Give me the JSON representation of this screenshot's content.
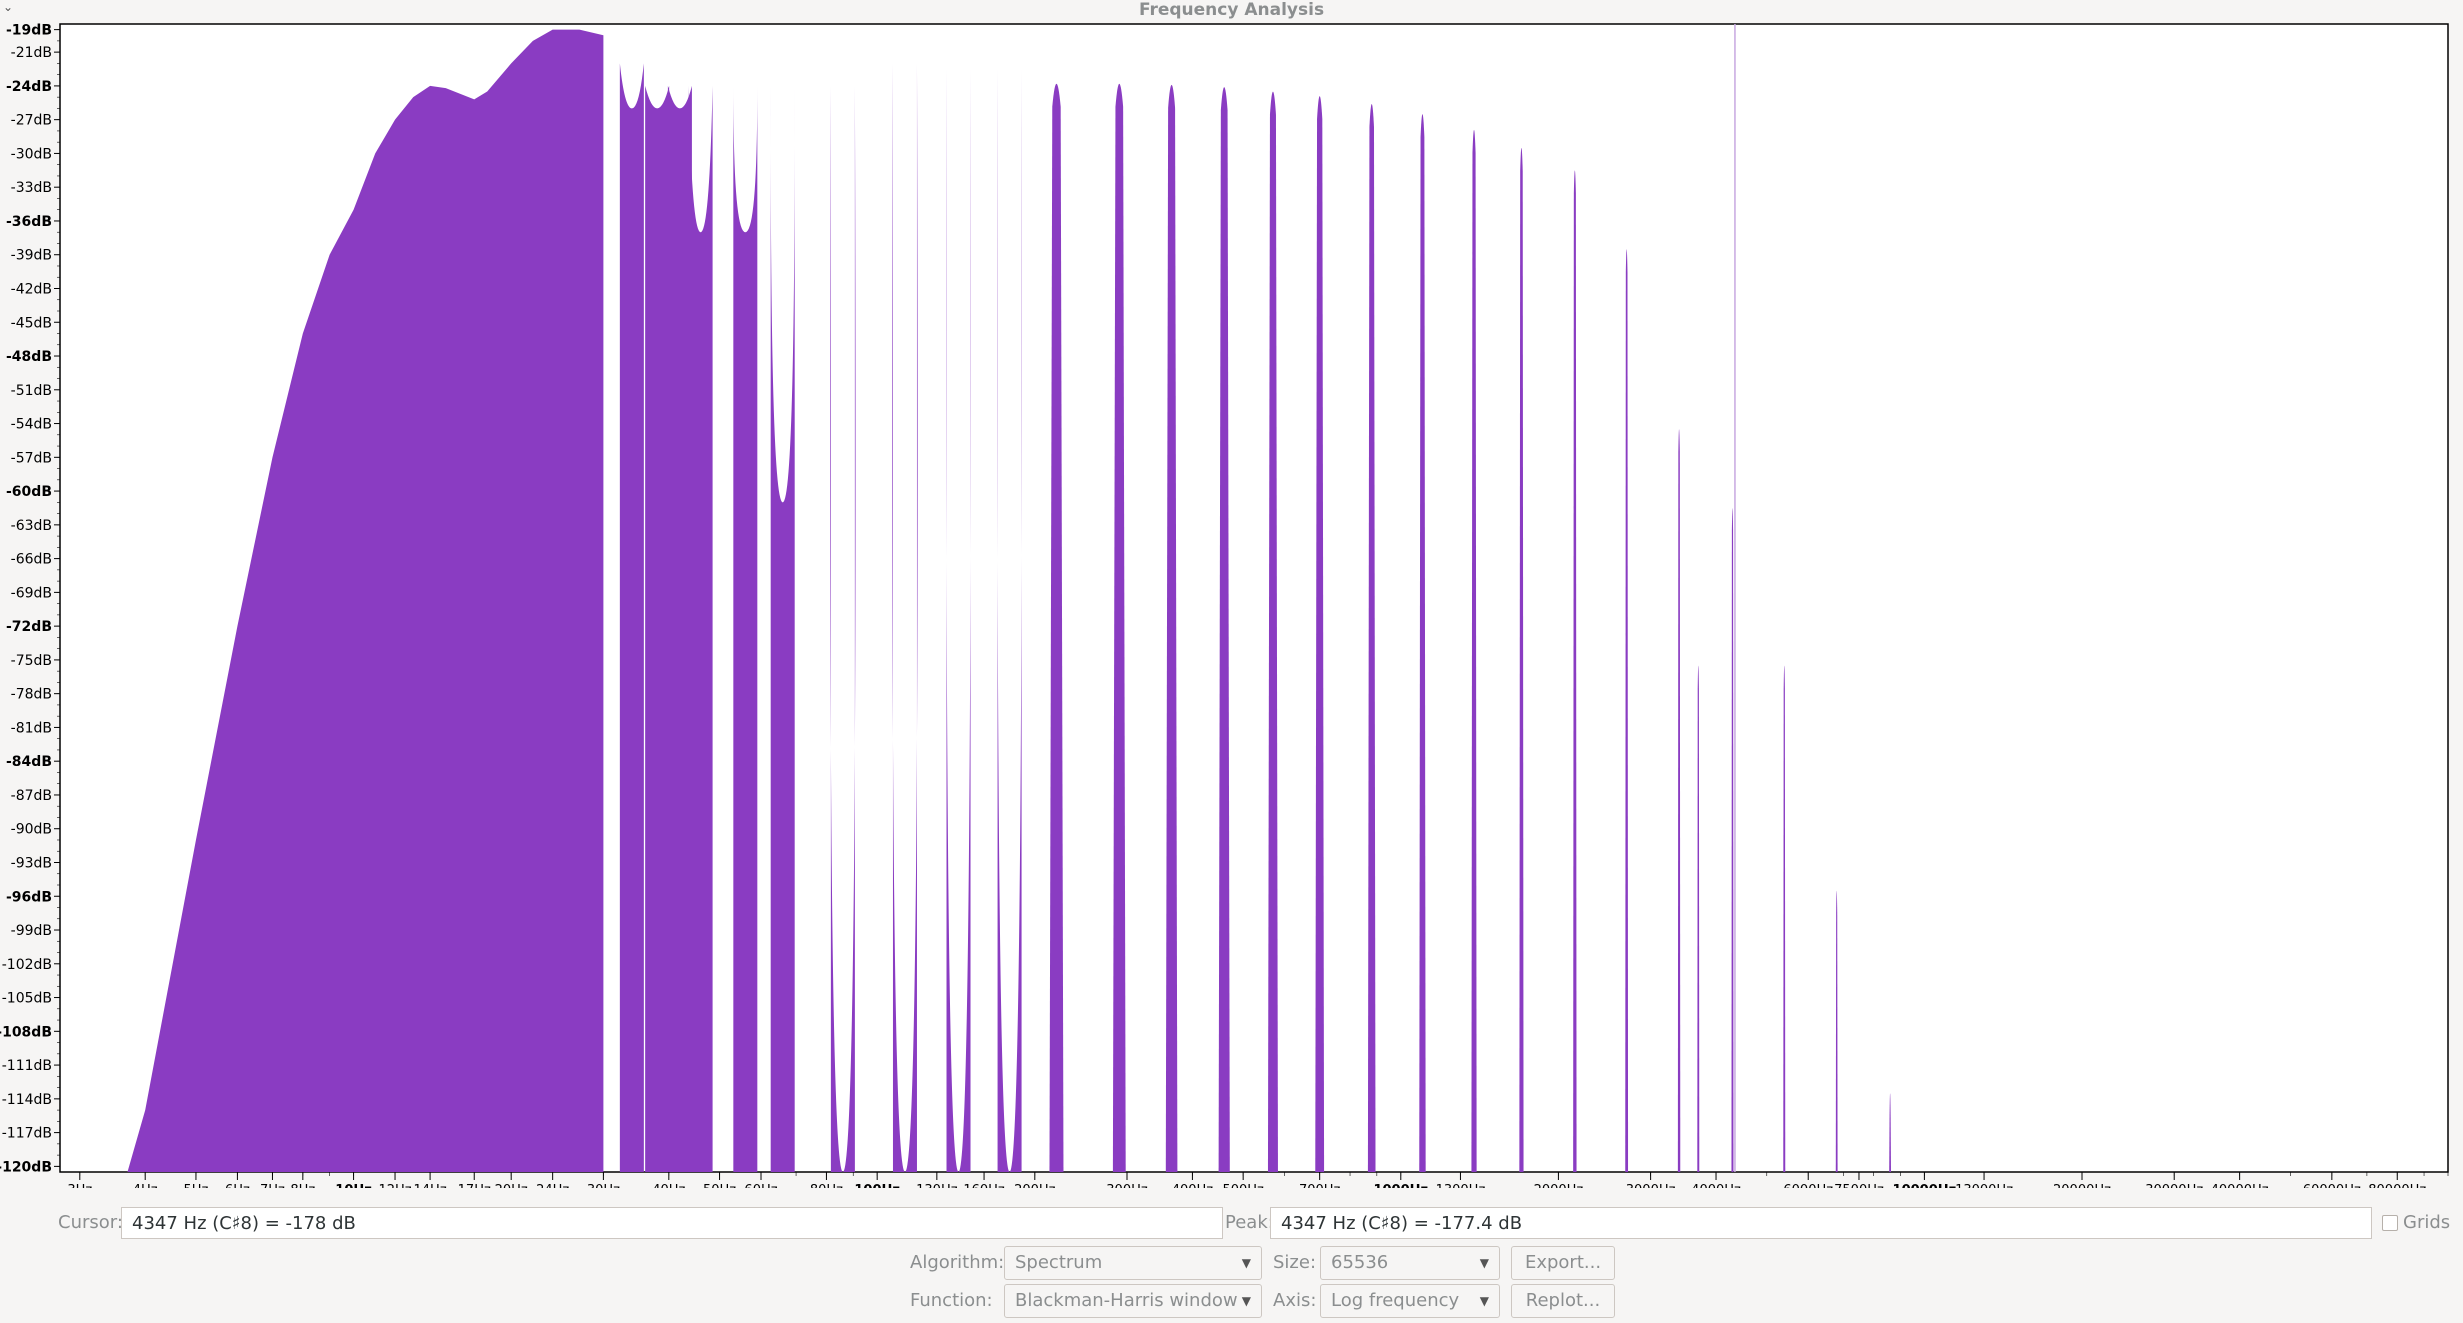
{
  "window": {
    "title": "Frequency Analysis",
    "menu_glyph": "⌄"
  },
  "chart_data": {
    "type": "area",
    "title": "",
    "xlabel": "",
    "ylabel": "",
    "x_scale": "log",
    "xlim": [
      2.75,
      100000
    ],
    "ylim": [
      -120.5,
      -18.5
    ],
    "y_ticks": [
      -19,
      -21,
      -24,
      -27,
      -30,
      -33,
      -36,
      -39,
      -42,
      -45,
      -48,
      -51,
      -54,
      -57,
      -60,
      -63,
      -66,
      -69,
      -72,
      -75,
      -78,
      -81,
      -84,
      -87,
      -90,
      -93,
      -96,
      -99,
      -102,
      -105,
      -108,
      -111,
      -114,
      -117,
      -120
    ],
    "y_bold_ticks": [
      -19,
      -24,
      -36,
      -48,
      -60,
      -72,
      -84,
      -96,
      -108,
      -120
    ],
    "x_ticks": [
      3,
      4,
      5,
      6,
      7,
      8,
      10,
      12,
      14,
      17,
      20,
      24,
      30,
      40,
      50,
      60,
      80,
      100,
      130,
      160,
      200,
      300,
      400,
      500,
      700,
      1000,
      1300,
      2000,
      3000,
      4000,
      6000,
      7500,
      10000,
      13000,
      20000,
      30000,
      40000,
      60000,
      80000
    ],
    "x_bold_ticks": [
      10,
      100,
      1000,
      10000
    ],
    "x_tick_unit": "Hz",
    "y_tick_unit": "dB",
    "fill_color": "#8a3cc2",
    "cursor_line_hz": 4347,
    "grid": false,
    "envelope": [
      [
        3.7,
        -121
      ],
      [
        4,
        -115
      ],
      [
        5,
        -91
      ],
      [
        6,
        -72
      ],
      [
        7,
        -57
      ],
      [
        8,
        -46
      ],
      [
        9,
        -39
      ],
      [
        10,
        -35
      ],
      [
        11,
        -30
      ],
      [
        12,
        -27
      ],
      [
        13,
        -25
      ],
      [
        14,
        -24
      ],
      [
        15,
        -24.2
      ],
      [
        17,
        -25.2
      ],
      [
        18,
        -24.5
      ],
      [
        20,
        -22
      ],
      [
        22,
        -20
      ],
      [
        24,
        -19
      ],
      [
        27,
        -19
      ],
      [
        30,
        -19.5
      ]
    ],
    "lobes": [
      [
        34,
        -26,
        2.8,
        -22
      ],
      [
        38,
        -26,
        2.4,
        -24
      ],
      [
        42,
        -26,
        2.4,
        -24
      ],
      [
        46,
        -37,
        3.4,
        -24
      ],
      [
        56,
        -37,
        4.6,
        -24
      ],
      [
        66,
        -61,
        4.8,
        -24
      ],
      [
        86,
        -121,
        6.0,
        -24
      ],
      [
        113,
        -121,
        6.0,
        -22
      ],
      [
        143,
        -121,
        5.4,
        -22.5
      ],
      [
        179,
        -121,
        5.4,
        -22.5
      ]
    ],
    "harmonics": [
      [
        220,
        -22.3,
        7.0
      ],
      [
        290,
        -22.3,
        6.4
      ],
      [
        365,
        -22.4,
        5.8
      ],
      [
        460,
        -22.6,
        5.6
      ],
      [
        570,
        -23,
        5.0
      ],
      [
        700,
        -23.4,
        4.4
      ],
      [
        880,
        -24.1,
        3.8
      ],
      [
        1100,
        -25,
        3.2
      ],
      [
        1380,
        -26.4,
        2.6
      ],
      [
        1700,
        -28,
        2.1
      ],
      [
        2150,
        -30,
        1.7
      ],
      [
        2700,
        -37,
        1.4
      ],
      [
        3400,
        -53,
        1.2
      ],
      [
        3700,
        -74,
        1.0
      ],
      [
        4300,
        -60,
        1.0
      ],
      [
        5400,
        -74,
        1.0
      ],
      [
        6800,
        -94,
        0.9
      ],
      [
        8600,
        -112,
        0.9
      ]
    ]
  },
  "cursor": {
    "label": "Cursor:",
    "value": "4347 Hz (C♯8) = -178 dB"
  },
  "peak": {
    "label": "Peak:",
    "value": "4347 Hz (C♯8) = -177.4 dB"
  },
  "grids": {
    "label": "Grids"
  },
  "controls": {
    "algorithm_label": "Algorithm:",
    "algorithm_value": "Spectrum",
    "size_label": "Size:",
    "size_value": "65536",
    "export_label": "Export...",
    "function_label": "Function:",
    "function_value": "Blackman-Harris window",
    "axis_label": "Axis:",
    "axis_value": "Log frequency",
    "replot_label": "Replot..."
  }
}
